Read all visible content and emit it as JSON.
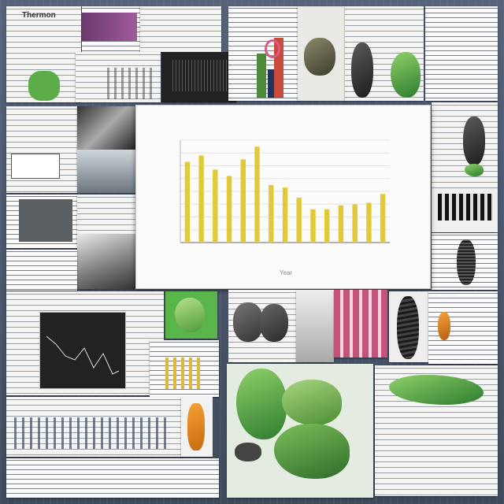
{
  "collage": {
    "top_left_heading": "Thermon"
  },
  "main_chart": {
    "title": "",
    "xlabel": "Year"
  },
  "chart_data": {
    "type": "bar",
    "categories": [
      "",
      "",
      "",
      "",
      "",
      "",
      "",
      "",
      "",
      "",
      "",
      "",
      "",
      "",
      ""
    ],
    "values": [
      63,
      68,
      57,
      52,
      65,
      75,
      45,
      43,
      35,
      26,
      26,
      29,
      30,
      31,
      38
    ],
    "ylim": [
      0,
      80
    ],
    "grid": true,
    "bar_color": "#e2c93a"
  },
  "colors": {
    "background": "#4b5568",
    "bar": "#e2c93a",
    "leaf_green": "#5cad4a"
  }
}
